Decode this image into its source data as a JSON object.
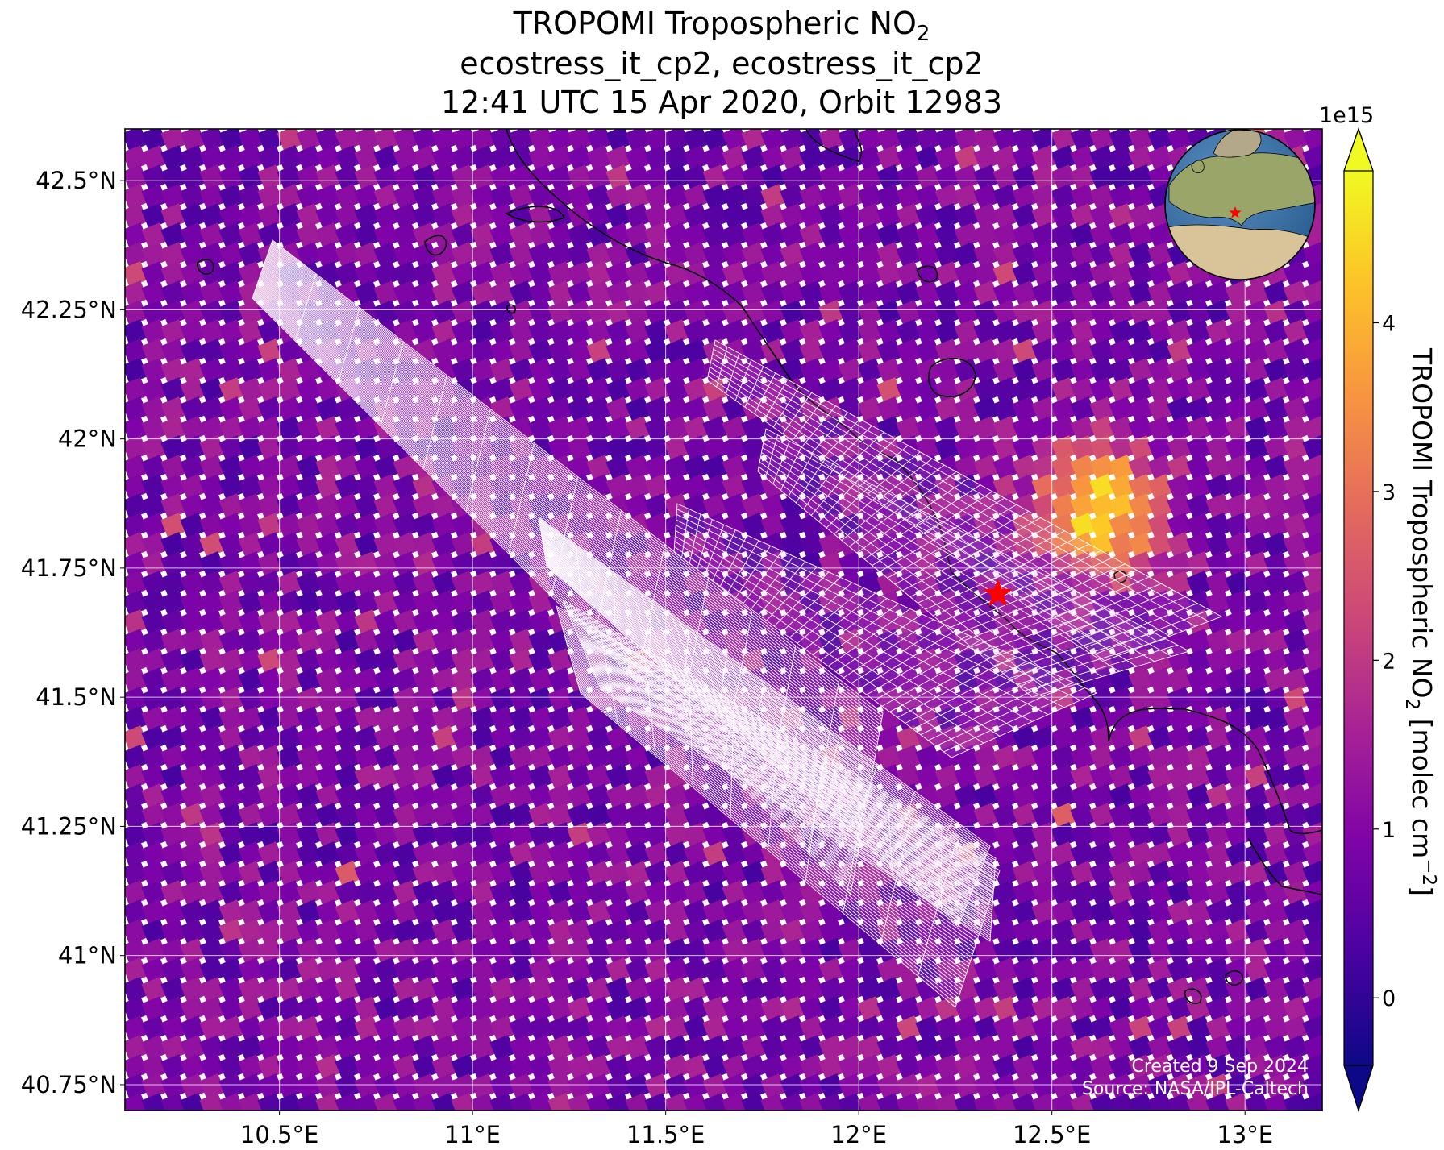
{
  "title": {
    "line1_main": "TROPOMI Tropospheric NO",
    "line1_sub": "2",
    "line2": "ecostress_it_cp2, ecostress_it_cp2",
    "line3": "12:41 UTC 15 Apr 2020, Orbit 12983"
  },
  "map": {
    "lon_range": [
      10.1,
      13.2
    ],
    "lat_range": [
      40.7,
      42.6
    ],
    "lon_ticks": [
      {
        "value": 10.5,
        "label": "10.5°E"
      },
      {
        "value": 11.0,
        "label": "11°E"
      },
      {
        "value": 11.5,
        "label": "11.5°E"
      },
      {
        "value": 12.0,
        "label": "12°E"
      },
      {
        "value": 12.5,
        "label": "12.5°E"
      },
      {
        "value": 13.0,
        "label": "13°E"
      }
    ],
    "lat_ticks": [
      {
        "value": 42.5,
        "label": "42.5°N"
      },
      {
        "value": 42.25,
        "label": "42.25°N"
      },
      {
        "value": 42.0,
        "label": "42°N"
      },
      {
        "value": 41.75,
        "label": "41.75°N"
      },
      {
        "value": 41.5,
        "label": "41.5°N"
      },
      {
        "value": 41.25,
        "label": "41.25°N"
      },
      {
        "value": 41.0,
        "label": "41°N"
      },
      {
        "value": 40.75,
        "label": "40.75°N"
      }
    ],
    "gridlines": true,
    "target_marker": {
      "lon": 12.36,
      "lat": 41.7,
      "symbol": "star",
      "color": "#ff0000"
    },
    "hotspot": {
      "lon": 12.6,
      "lat": 41.88,
      "peak_value": 4900000000000000.0
    },
    "colormap": "plasma",
    "inset_globe": {
      "center_region": "Italy",
      "marker_color": "#ff0000"
    }
  },
  "colorbar": {
    "label_main": "TROPOMI Tropospheric NO",
    "label_sub": "2",
    "label_units": " [molec cm",
    "label_exp": "−2",
    "label_end": "]",
    "exponent": "1e15",
    "range": [
      -0.4,
      4.9
    ],
    "ticks": [
      {
        "value": 0,
        "label": "0"
      },
      {
        "value": 1,
        "label": "1"
      },
      {
        "value": 2,
        "label": "2"
      },
      {
        "value": 3,
        "label": "3"
      },
      {
        "value": 4,
        "label": "4"
      }
    ],
    "extend": "both"
  },
  "credits": {
    "line1": "Created 9 Sep 2024",
    "line2": "Source: NASA/JPL-Caltech"
  },
  "colors": {
    "gridline": "#ffffff",
    "coastline": "#000000",
    "footprint_grid": "#ffffff",
    "marker": "#ff0000"
  }
}
